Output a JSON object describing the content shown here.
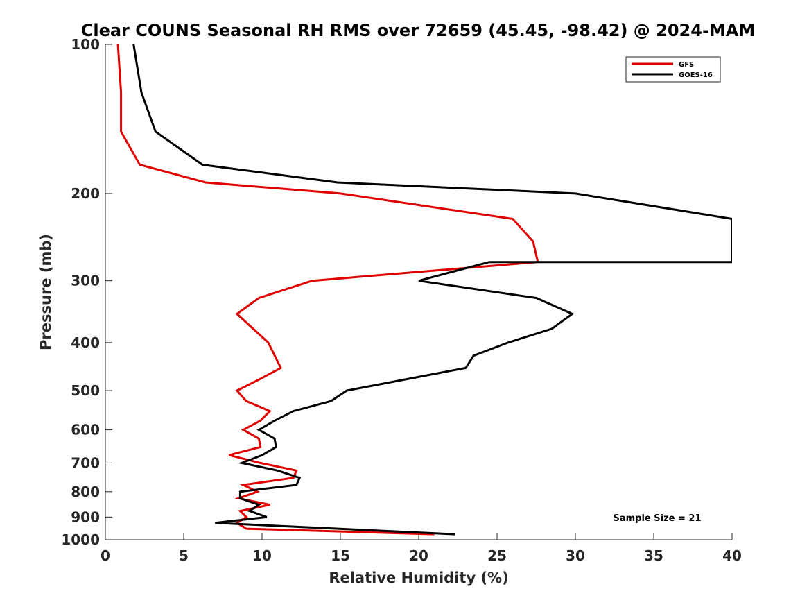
{
  "chart_data": {
    "type": "line",
    "title": "Clear COUNS Seasonal RH RMS over 72659 (45.45, -98.42) @ 2024-MAM",
    "xlabel": "Relative Humidity (%)",
    "ylabel": "Pressure (mb)",
    "xlim": [
      0,
      40
    ],
    "ylim": [
      100,
      1000
    ],
    "yscale": "log",
    "y_reversed": true,
    "xticks": [
      0,
      5,
      10,
      15,
      20,
      25,
      30,
      35,
      40
    ],
    "yticks": [
      100,
      200,
      300,
      400,
      500,
      600,
      700,
      800,
      900,
      1000
    ],
    "legend_position": "top-right",
    "annotation": "Sample Size = 21",
    "series": [
      {
        "name": "GFS",
        "color": "#e00000",
        "points": [
          [
            0.8,
            100
          ],
          [
            1.0,
            125
          ],
          [
            1.0,
            150
          ],
          [
            2.2,
            175
          ],
          [
            6.4,
            190
          ],
          [
            15.0,
            200
          ],
          [
            26.0,
            225
          ],
          [
            27.3,
            250
          ],
          [
            27.6,
            275
          ],
          [
            13.2,
            300
          ],
          [
            9.8,
            325
          ],
          [
            8.4,
            350
          ],
          [
            10.4,
            400
          ],
          [
            11.2,
            450
          ],
          [
            9.8,
            475
          ],
          [
            8.4,
            500
          ],
          [
            9.0,
            525
          ],
          [
            10.5,
            550
          ],
          [
            9.9,
            575
          ],
          [
            8.8,
            600
          ],
          [
            9.8,
            625
          ],
          [
            9.9,
            650
          ],
          [
            7.9,
            675
          ],
          [
            9.9,
            700
          ],
          [
            12.2,
            725
          ],
          [
            12.0,
            750
          ],
          [
            8.8,
            775
          ],
          [
            9.7,
            800
          ],
          [
            8.5,
            825
          ],
          [
            10.5,
            850
          ],
          [
            8.6,
            875
          ],
          [
            9.0,
            900
          ],
          [
            8.4,
            925
          ],
          [
            9.0,
            950
          ],
          [
            21.0,
            975
          ]
        ]
      },
      {
        "name": "GOES-16",
        "color": "#000000",
        "points": [
          [
            1.8,
            100
          ],
          [
            2.3,
            125
          ],
          [
            3.2,
            150
          ],
          [
            6.2,
            175
          ],
          [
            14.8,
            190
          ],
          [
            30.0,
            200
          ],
          [
            40.0,
            225
          ],
          [
            40.0,
            250
          ],
          [
            40.0,
            275
          ],
          [
            24.5,
            275
          ],
          [
            20.0,
            300
          ],
          [
            27.5,
            325
          ],
          [
            29.8,
            350
          ],
          [
            28.5,
            375
          ],
          [
            25.7,
            400
          ],
          [
            23.5,
            425
          ],
          [
            23.0,
            450
          ],
          [
            15.4,
            500
          ],
          [
            14.4,
            525
          ],
          [
            12.0,
            550
          ],
          [
            10.8,
            575
          ],
          [
            9.8,
            600
          ],
          [
            10.8,
            625
          ],
          [
            10.9,
            650
          ],
          [
            10.0,
            675
          ],
          [
            8.7,
            700
          ],
          [
            11.0,
            725
          ],
          [
            12.4,
            750
          ],
          [
            12.2,
            775
          ],
          [
            8.6,
            800
          ],
          [
            8.6,
            825
          ],
          [
            9.8,
            850
          ],
          [
            9.2,
            875
          ],
          [
            10.3,
            900
          ],
          [
            7.0,
            925
          ],
          [
            22.3,
            975
          ]
        ]
      }
    ]
  }
}
